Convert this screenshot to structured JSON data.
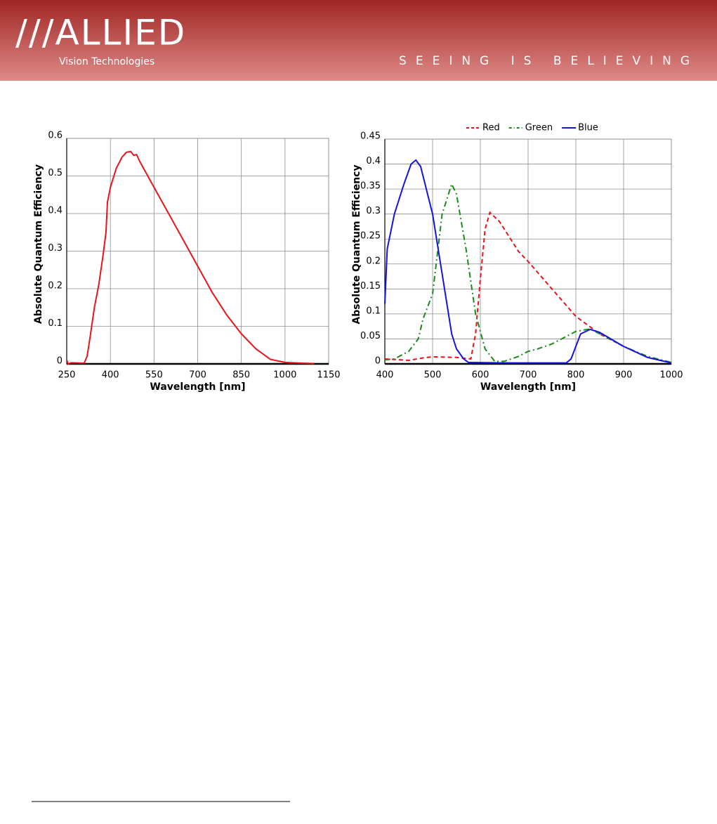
{
  "header": {
    "logo": "///ALLIED",
    "logo_subtitle": "Vision Technologies",
    "tagline": "SEEING IS BELIEVING"
  },
  "chart_data": [
    {
      "type": "line",
      "xlabel": "Wavelength [nm]",
      "ylabel": "Absolute Quantum Efficiency",
      "xlim": [
        250,
        1150
      ],
      "xticks": [
        250,
        400,
        550,
        700,
        850,
        1000,
        1150
      ],
      "ylim": [
        0,
        0.6
      ],
      "yticks": [
        0,
        0.1,
        0.2,
        0.3,
        0.4,
        0.5,
        0.6
      ],
      "grid": true,
      "series": [
        {
          "name": null,
          "color": "#e8141b",
          "dash": "solid",
          "x": [
            250,
            255,
            265,
            300,
            310,
            320,
            330,
            345,
            360,
            375,
            385,
            390,
            400,
            420,
            440,
            455,
            470,
            480,
            490,
            500,
            550,
            600,
            650,
            700,
            750,
            800,
            850,
            900,
            950,
            1000,
            1050,
            1100
          ],
          "values": [
            0.01,
            0.0,
            0.003,
            0.002,
            0.002,
            0.02,
            0.07,
            0.15,
            0.21,
            0.29,
            0.35,
            0.43,
            0.47,
            0.52,
            0.55,
            0.563,
            0.565,
            0.555,
            0.557,
            0.54,
            0.47,
            0.4,
            0.33,
            0.26,
            0.19,
            0.13,
            0.08,
            0.04,
            0.012,
            0.004,
            0.002,
            0.001
          ]
        }
      ]
    },
    {
      "type": "line",
      "xlabel": "Wavelength [nm]",
      "ylabel": "Absolute Quantum Efficiency",
      "xlim": [
        400,
        1000
      ],
      "xticks": [
        400,
        500,
        600,
        700,
        800,
        900,
        1000
      ],
      "ylim": [
        0,
        0.45
      ],
      "yticks": [
        0,
        0.05,
        0.1,
        0.15,
        0.2,
        0.25,
        0.3,
        0.35,
        0.4,
        0.45
      ],
      "grid": true,
      "legend": "top",
      "series": [
        {
          "name": "Red",
          "color": "#e8141b",
          "dash": "dashed",
          "x": [
            400,
            450,
            480,
            500,
            550,
            580,
            590,
            600,
            610,
            620,
            640,
            660,
            680,
            700,
            750,
            800,
            850,
            900,
            950,
            1000
          ],
          "values": [
            0.01,
            0.007,
            0.012,
            0.014,
            0.013,
            0.01,
            0.06,
            0.17,
            0.27,
            0.303,
            0.285,
            0.255,
            0.225,
            0.205,
            0.15,
            0.095,
            0.06,
            0.035,
            0.013,
            0.002
          ]
        },
        {
          "name": "Green",
          "color": "#1a8a1a",
          "dash": "dashdot",
          "x": [
            400,
            420,
            450,
            470,
            480,
            500,
            510,
            520,
            540,
            550,
            570,
            590,
            610,
            630,
            650,
            680,
            700,
            720,
            750,
            780,
            800,
            830,
            850,
            900,
            950,
            1000
          ],
          "values": [
            0.008,
            0.01,
            0.025,
            0.05,
            0.09,
            0.14,
            0.22,
            0.3,
            0.36,
            0.34,
            0.23,
            0.1,
            0.03,
            0.005,
            0.005,
            0.015,
            0.025,
            0.03,
            0.04,
            0.055,
            0.065,
            0.07,
            0.06,
            0.035,
            0.015,
            0.003
          ]
        },
        {
          "name": "Blue",
          "color": "#1414e0",
          "dash": "solid",
          "x": [
            400,
            405,
            420,
            440,
            455,
            465,
            475,
            500,
            520,
            540,
            550,
            565,
            575,
            650,
            780,
            790,
            810,
            830,
            850,
            900,
            950,
            1000
          ],
          "values": [
            0.12,
            0.23,
            0.3,
            0.36,
            0.4,
            0.408,
            0.395,
            0.3,
            0.18,
            0.06,
            0.03,
            0.01,
            0.003,
            0.002,
            0.002,
            0.01,
            0.06,
            0.069,
            0.063,
            0.035,
            0.013,
            0.002
          ]
        }
      ]
    }
  ]
}
